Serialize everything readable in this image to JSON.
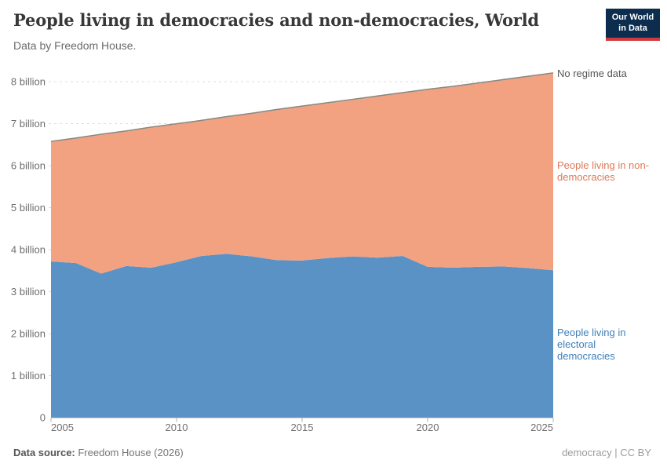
{
  "header": {
    "title": "People living in democracies and non-democracies, World",
    "subtitle": "Data by Freedom House.",
    "logo_line1": "Our World",
    "logo_line2": "in Data",
    "logo_bg_color": "#0d2d4f",
    "logo_accent_color": "#cf3a3e"
  },
  "chart_data": {
    "type": "area",
    "stacked": true,
    "title": "People living in democracies and non-democracies, World",
    "x": [
      2005,
      2006,
      2007,
      2008,
      2009,
      2010,
      2011,
      2012,
      2013,
      2014,
      2015,
      2016,
      2017,
      2018,
      2019,
      2020,
      2021,
      2022,
      2023,
      2024,
      2025
    ],
    "unit": "billion people",
    "series": [
      {
        "name": "People living in electoral democracies",
        "color": "#5b92c6",
        "label_color": "#3f80ba",
        "values": [
          3.72,
          3.68,
          3.43,
          3.61,
          3.57,
          3.7,
          3.85,
          3.9,
          3.84,
          3.75,
          3.74,
          3.8,
          3.84,
          3.81,
          3.85,
          3.59,
          3.57,
          3.59,
          3.6,
          3.56,
          3.51
        ]
      },
      {
        "name": "People living in non-democracies",
        "color": "#f2a181",
        "label_color": "#dd7a57",
        "values": [
          2.84,
          2.96,
          3.3,
          3.2,
          3.33,
          3.28,
          3.21,
          3.25,
          3.39,
          3.57,
          3.66,
          3.68,
          3.72,
          3.83,
          3.87,
          4.21,
          4.3,
          4.36,
          4.43,
          4.55,
          4.68
        ]
      },
      {
        "name": "No regime data",
        "color": "#9a938a",
        "label_color": "#565656",
        "values": [
          0.02,
          0.02,
          0.02,
          0.02,
          0.02,
          0.02,
          0.02,
          0.02,
          0.02,
          0.02,
          0.02,
          0.02,
          0.02,
          0.02,
          0.02,
          0.02,
          0.02,
          0.02,
          0.02,
          0.02,
          0.02
        ]
      }
    ],
    "total_population": [
      6.58,
      6.66,
      6.75,
      6.83,
      6.92,
      7.0,
      7.08,
      7.17,
      7.25,
      7.34,
      7.42,
      7.5,
      7.58,
      7.66,
      7.74,
      7.82,
      7.89,
      7.97,
      8.05,
      8.13,
      8.21
    ],
    "total_line_color": "#8d867c",
    "xlim": [
      2005,
      2025
    ],
    "ylim": [
      0,
      8.37
    ],
    "grid": "dashed horizontal",
    "legend_position": "right annotations",
    "y_axis": {
      "ticks": [
        {
          "value": 0,
          "label": "0"
        },
        {
          "value": 1,
          "label": "1 billion"
        },
        {
          "value": 2,
          "label": "2 billion"
        },
        {
          "value": 3,
          "label": "3 billion"
        },
        {
          "value": 4,
          "label": "4 billion"
        },
        {
          "value": 5,
          "label": "5 billion"
        },
        {
          "value": 6,
          "label": "6 billion"
        },
        {
          "value": 7,
          "label": "7 billion"
        },
        {
          "value": 8,
          "label": "8 billion"
        }
      ]
    },
    "x_axis": {
      "ticks": [
        {
          "value": 2005,
          "label": "2005"
        },
        {
          "value": 2010,
          "label": "2010"
        },
        {
          "value": 2015,
          "label": "2015"
        },
        {
          "value": 2020,
          "label": "2020"
        },
        {
          "value": 2025,
          "label": "2025"
        }
      ]
    }
  },
  "footer": {
    "source_label": "Data source:",
    "source_value": " Freedom House (2026)",
    "right_text": "democracy | CC BY"
  }
}
